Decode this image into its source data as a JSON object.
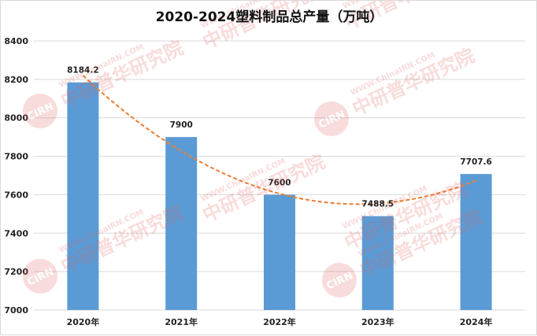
{
  "chart_data": {
    "type": "bar",
    "title": "2020-2024塑料制品总产量（万吨）",
    "categories": [
      "2020年",
      "2021年",
      "2022年",
      "2023年",
      "2024年"
    ],
    "values": [
      8184.2,
      7900,
      7600,
      7488.5,
      7707.6
    ],
    "data_labels": [
      "8184.2",
      "7900",
      "7600",
      "7488.5",
      "7707.6"
    ],
    "ylim": [
      7000,
      8400
    ],
    "yticks": [
      "7000",
      "7200",
      "7400",
      "7600",
      "7800",
      "8000",
      "8200",
      "8400"
    ],
    "xlabel": "",
    "ylabel": "",
    "grid": true,
    "trendline": "polynomial, dashed",
    "colors": {
      "bar": "#5b9bd5",
      "trend": "#ed7d31",
      "grid": "#d9d9d9"
    }
  },
  "watermark": {
    "url": "WWW.ChinaIRN.COM",
    "brand": "中研普华研究院",
    "logo": "CIRN"
  }
}
